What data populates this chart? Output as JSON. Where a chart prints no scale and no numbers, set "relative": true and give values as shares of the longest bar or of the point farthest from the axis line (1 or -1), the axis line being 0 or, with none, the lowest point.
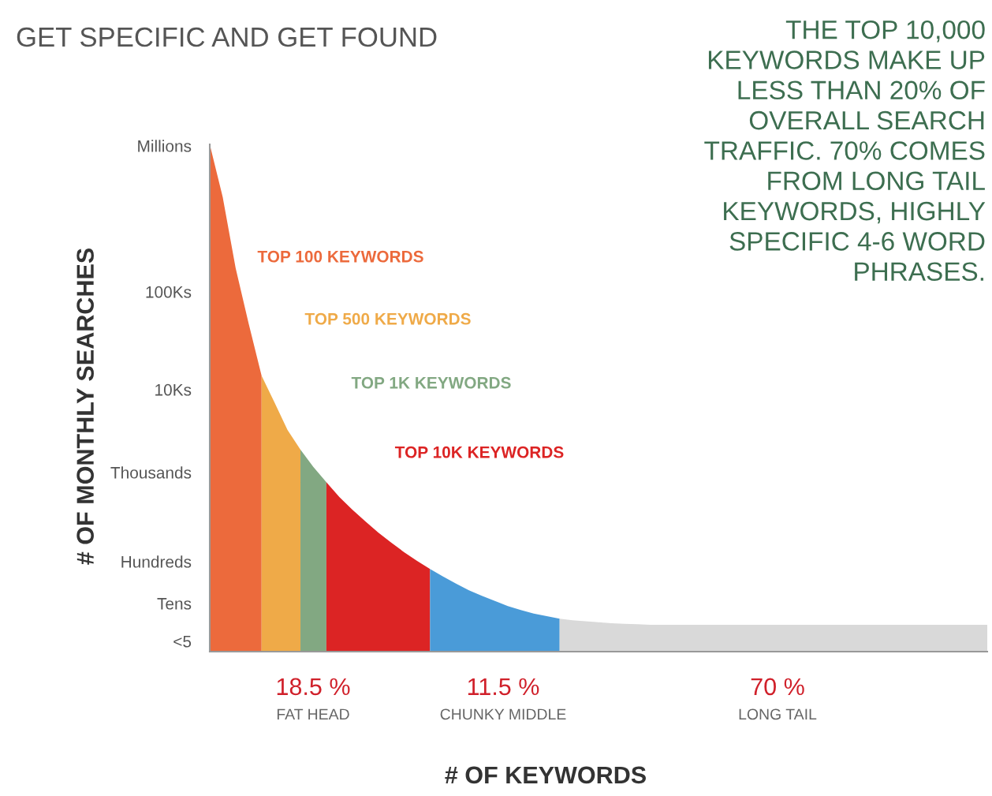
{
  "chart_data": {
    "type": "area",
    "title": "GET SPECIFIC AND GET FOUND",
    "xlabel": "# OF KEYWORDS",
    "ylabel": "# OF MONTHLY SEARCHES",
    "relative": true,
    "grid": false,
    "legend": false,
    "categories": [
      null,
      null,
      null,
      null,
      null,
      null,
      null,
      null,
      null,
      null,
      null,
      null,
      null,
      null,
      null,
      null,
      null,
      null,
      null,
      null,
      null,
      null,
      null,
      null,
      null,
      null,
      null,
      null,
      null,
      null,
      null,
      null,
      null,
      null,
      null,
      null,
      null,
      null,
      null,
      null,
      null,
      null,
      null,
      null,
      null,
      null,
      null,
      null,
      null,
      null,
      null,
      null,
      null,
      null,
      null,
      null,
      null,
      null,
      null,
      null,
      null
    ],
    "series": [
      {
        "name": "TOP 100 KEYWORDS",
        "color": "#ec6a3c",
        "values": [
          1.0,
          0.896,
          0.756,
          0.647,
          0.544,
          null,
          null,
          null,
          null,
          null,
          null,
          null,
          null,
          null,
          null,
          null,
          null,
          null,
          null,
          null,
          null,
          null,
          null,
          null,
          null,
          null,
          null,
          null,
          null,
          null,
          null,
          null,
          null,
          null,
          null,
          null,
          null,
          null,
          null,
          null,
          null,
          null,
          null,
          null,
          null,
          null,
          null,
          null,
          null,
          null,
          null,
          null,
          null,
          null,
          null,
          null,
          null,
          null,
          null,
          null,
          null
        ]
      },
      {
        "name": "TOP 500 KEYWORDS",
        "color": "#efaa48",
        "values": [
          null,
          null,
          null,
          null,
          0.544,
          0.491,
          0.437,
          0.398,
          null,
          null,
          null,
          null,
          null,
          null,
          null,
          null,
          null,
          null,
          null,
          null,
          null,
          null,
          null,
          null,
          null,
          null,
          null,
          null,
          null,
          null,
          null,
          null,
          null,
          null,
          null,
          null,
          null,
          null,
          null,
          null,
          null,
          null,
          null,
          null,
          null,
          null,
          null,
          null,
          null,
          null,
          null,
          null,
          null,
          null,
          null,
          null,
          null,
          null,
          null,
          null,
          null
        ]
      },
      {
        "name": "TOP 1K KEYWORDS",
        "color": "#82a882",
        "values": [
          null,
          null,
          null,
          null,
          null,
          null,
          null,
          0.398,
          0.364,
          0.334,
          null,
          null,
          null,
          null,
          null,
          null,
          null,
          null,
          null,
          null,
          null,
          null,
          null,
          null,
          null,
          null,
          null,
          null,
          null,
          null,
          null,
          null,
          null,
          null,
          null,
          null,
          null,
          null,
          null,
          null,
          null,
          null,
          null,
          null,
          null,
          null,
          null,
          null,
          null,
          null,
          null,
          null,
          null,
          null,
          null,
          null,
          null,
          null,
          null,
          null,
          null
        ]
      },
      {
        "name": "TOP 10K KEYWORDS",
        "color": "#dc2424",
        "values": [
          null,
          null,
          null,
          null,
          null,
          null,
          null,
          null,
          null,
          0.334,
          0.305,
          0.28,
          0.257,
          0.235,
          0.215,
          0.196,
          0.179,
          0.163,
          null,
          null,
          null,
          null,
          null,
          null,
          null,
          null,
          null,
          null,
          null,
          null,
          null,
          null,
          null,
          null,
          null,
          null,
          null,
          null,
          null,
          null,
          null,
          null,
          null,
          null,
          null,
          null,
          null,
          null,
          null,
          null,
          null,
          null,
          null,
          null,
          null,
          null,
          null,
          null,
          null,
          null,
          null
        ]
      },
      {
        "color": "#4a9bd8",
        "values": [
          null,
          null,
          null,
          null,
          null,
          null,
          null,
          null,
          null,
          null,
          null,
          null,
          null,
          null,
          null,
          null,
          null,
          0.163,
          0.148,
          0.134,
          0.121,
          0.11,
          0.1,
          0.09,
          0.082,
          0.075,
          0.07,
          0.065,
          null,
          null,
          null,
          null,
          null,
          null,
          null,
          null,
          null,
          null,
          null,
          null,
          null,
          null,
          null,
          null,
          null,
          null,
          null,
          null,
          null,
          null,
          null,
          null,
          null,
          null,
          null,
          null,
          null,
          null,
          null,
          null,
          null
        ]
      },
      {
        "color": "#d9d9d9",
        "values": [
          null,
          null,
          null,
          null,
          null,
          null,
          null,
          null,
          null,
          null,
          null,
          null,
          null,
          null,
          null,
          null,
          null,
          null,
          null,
          null,
          null,
          null,
          null,
          null,
          null,
          null,
          null,
          0.065,
          0.062,
          0.06,
          0.058,
          0.056,
          0.055,
          0.054,
          0.053,
          0.053,
          0.053,
          0.053,
          0.053,
          0.053,
          0.053,
          0.053,
          0.053,
          0.053,
          0.053,
          0.053,
          0.053,
          0.053,
          0.053,
          0.053,
          0.053,
          0.053,
          0.053,
          0.053,
          0.053,
          0.053,
          0.053,
          0.053,
          0.053,
          0.053,
          0.053
        ]
      }
    ],
    "annotations": [
      "Millions",
      "100Ks",
      "10Ks",
      "Thousands",
      "Hundreds",
      "Tens",
      "<5",
      "18.5 %",
      "FAT HEAD",
      "11.5 %",
      "CHUNKY MIDDLE",
      "70 %",
      "LONG TAIL",
      "THE TOP 10,000\nKEYWORDS MAKE UP\nLESS THAN 20% OF\nOVERALL SEARCH\nTRAFFIC. 70% COMES\nFROM LONG TAIL\nKEYWORDS, HIGHLY\nSPECIFIC 4-6 WORD\nPHRASES."
    ]
  }
}
